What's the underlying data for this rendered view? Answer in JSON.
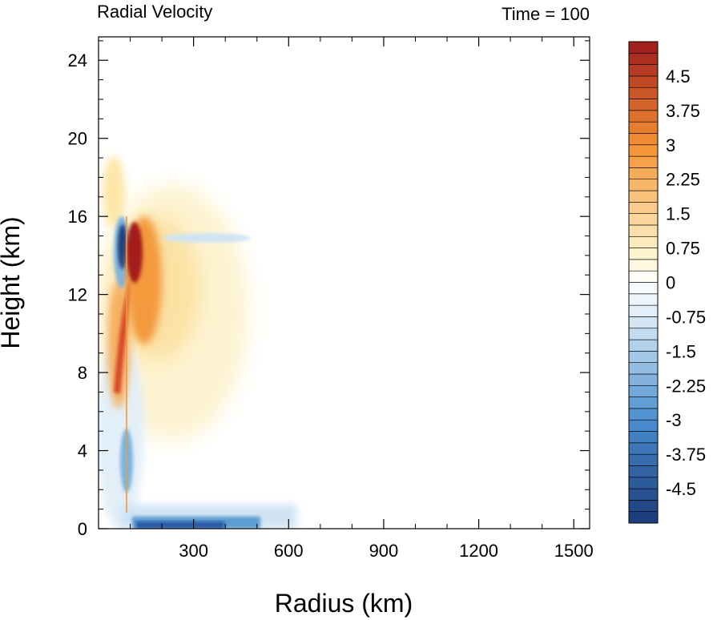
{
  "chart_data": {
    "type": "heatmap",
    "title_left": "Radial Velocity",
    "title_right": "Time = 100",
    "xlabel": "Radius (km)",
    "ylabel": "Height (km)",
    "xlim": [
      0,
      1550
    ],
    "ylim": [
      0,
      25.2
    ],
    "xticks": [
      300,
      600,
      900,
      1200,
      1500
    ],
    "yticks": [
      0,
      4,
      8,
      12,
      16,
      20,
      24
    ],
    "colorbar": {
      "range": [
        -5.25,
        5.25
      ],
      "step": 0.25,
      "tick_values": [
        -4.5,
        -3.75,
        -3,
        -2.25,
        -1.5,
        -0.75,
        0,
        0.75,
        1.5,
        2.25,
        3,
        3.75,
        4.5
      ],
      "tick_labels": [
        "-4.5",
        "-3.75",
        "-3",
        "-2.25",
        "-1.5",
        "-0.75",
        "0",
        "0.75",
        "1.5",
        "2.25",
        "3",
        "3.75",
        "4.5"
      ],
      "colors": {
        "neg_strong": "#1a3a78",
        "neg_mid": "#4a8ed0",
        "neg_weak": "#dcebf6",
        "zero": "#ffffff",
        "pos_weak": "#fdf0c4",
        "pos_mid": "#f39233",
        "pos_strong": "#9e1a1c"
      }
    },
    "features": [
      {
        "name": "upper outflow jet core",
        "r": 115,
        "z": 14.2,
        "value": 5.0
      },
      {
        "name": "upper inflow core",
        "r": 82,
        "z": 14.5,
        "value": -4.8
      },
      {
        "name": "mid-level outflow band",
        "r": 65,
        "z": 9.0,
        "value": 3.8
      },
      {
        "name": "broad outflow anvil",
        "r": 220,
        "z": 11.0,
        "value": 0.9
      },
      {
        "name": "boundary layer inflow",
        "r": 240,
        "z": 0.4,
        "value": -3.0
      },
      {
        "name": "low-level inflow near eyewall",
        "r": 75,
        "z": 3.2,
        "value": -2.0
      },
      {
        "name": "weak inflow streak",
        "r": 380,
        "z": 14.8,
        "value": -0.7
      }
    ]
  }
}
